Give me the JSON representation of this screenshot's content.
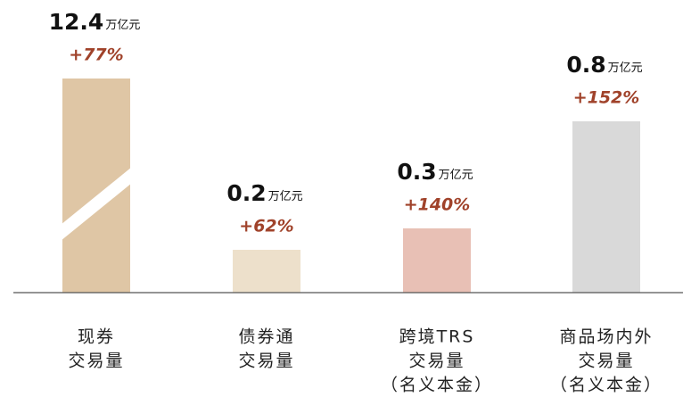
{
  "chart_data": {
    "type": "bar",
    "categories": [
      [
        "现券",
        "交易量"
      ],
      [
        "债券通",
        "交易量"
      ],
      [
        "跨境TRS",
        "交易量",
        "（名义本金）"
      ],
      [
        "商品场内外",
        "交易量",
        "（名义本金）"
      ]
    ],
    "values": [
      12.4,
      0.2,
      0.3,
      0.8
    ],
    "unit": "万亿元",
    "growth_labels": [
      "+77%",
      "+62%",
      "+140%",
      "+152%"
    ],
    "colors": [
      "#dfc6a5",
      "#ede0cb",
      "#e8c0b5",
      "#d9d9d9"
    ],
    "label_color": "#a0422a",
    "ylim": [
      0,
      1
    ],
    "axis_break": true
  }
}
